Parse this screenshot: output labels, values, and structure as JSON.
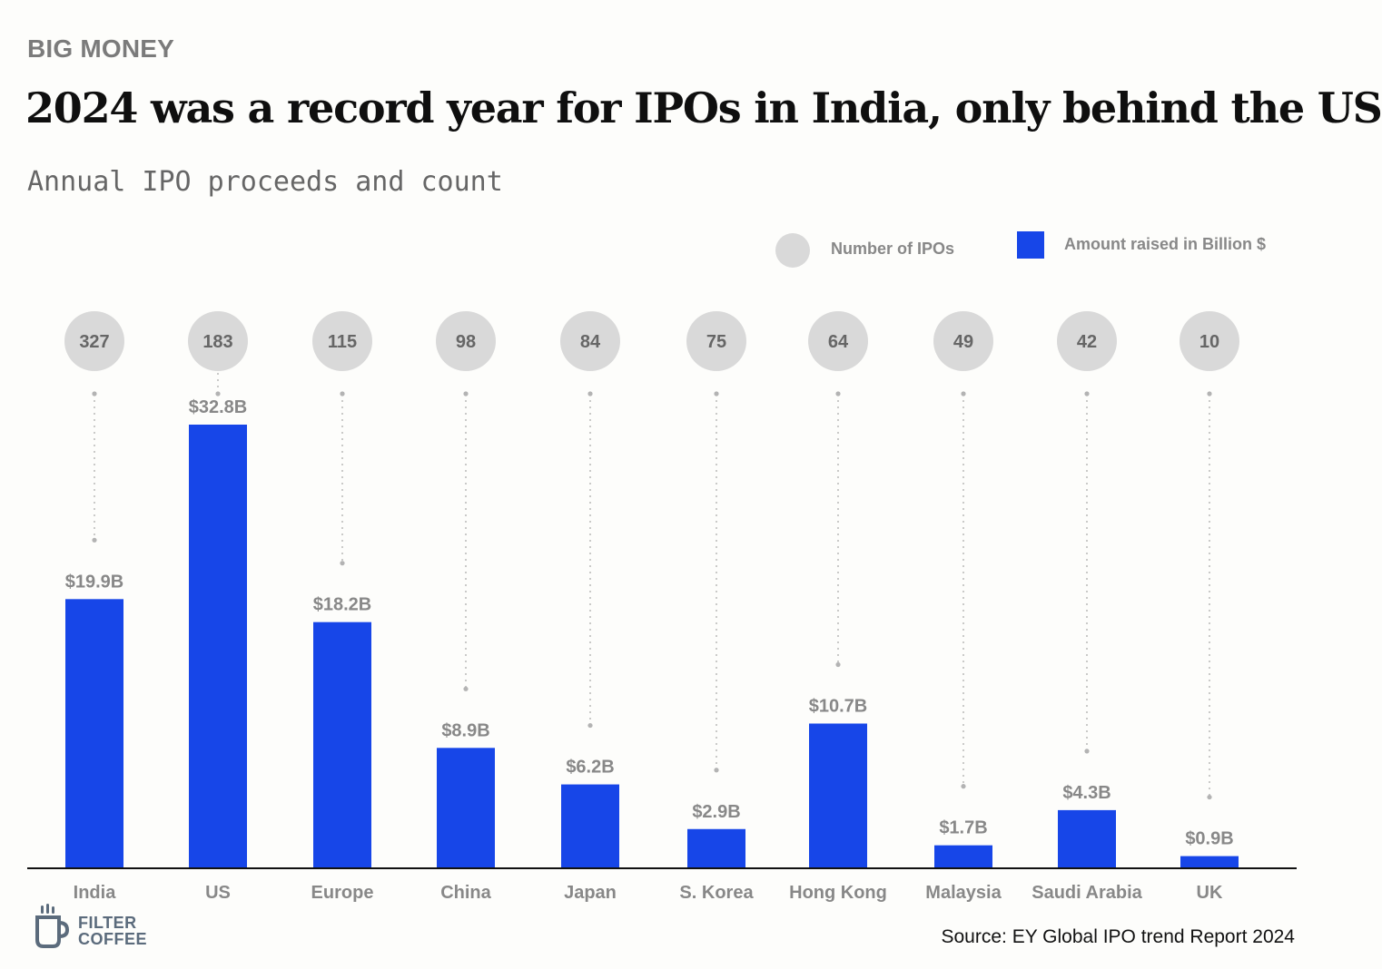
{
  "header": {
    "kicker": "BIG MONEY",
    "title": "2024 was a record year for IPOs in India, only behind the US",
    "subtitle": "Annual IPO proceeds and count"
  },
  "legend": {
    "count_label": "Number of IPOs",
    "amount_label": "Amount raised in Billion $"
  },
  "colors": {
    "bar": "#1746e8",
    "bubble": "#d9d9d9",
    "label_gray": "#888888"
  },
  "chart_data": {
    "type": "bar",
    "title": "2024 was a record year for IPOs in India, only behind the US",
    "subtitle": "Annual IPO proceeds and count",
    "categories": [
      "India",
      "US",
      "Europe",
      "China",
      "Japan",
      "S. Korea",
      "Hong Kong",
      "Malaysia",
      "Saudi Arabia",
      "UK"
    ],
    "series": [
      {
        "name": "Amount raised in Billion $",
        "values": [
          19.9,
          32.8,
          18.2,
          8.9,
          6.2,
          2.9,
          10.7,
          1.7,
          4.3,
          0.9
        ]
      },
      {
        "name": "Number of IPOs",
        "values": [
          327,
          183,
          115,
          98,
          84,
          75,
          64,
          49,
          42,
          10
        ]
      }
    ],
    "value_labels": [
      "$19.9B",
      "$32.8B",
      "$18.2B",
      "$8.9B",
      "$6.2B",
      "$2.9B",
      "$10.7B",
      "$1.7B",
      "$4.3B",
      "$0.9B"
    ],
    "count_labels": [
      "327",
      "183",
      "115",
      "98",
      "84",
      "75",
      "64",
      "49",
      "42",
      "10"
    ],
    "ylim": [
      0,
      32.8
    ],
    "grid": false,
    "legend_position": "top-right"
  },
  "logo": {
    "line1": "FILTER",
    "line2": "COFFEE"
  },
  "footer": {
    "source": "Source: EY Global IPO trend Report 2024"
  }
}
